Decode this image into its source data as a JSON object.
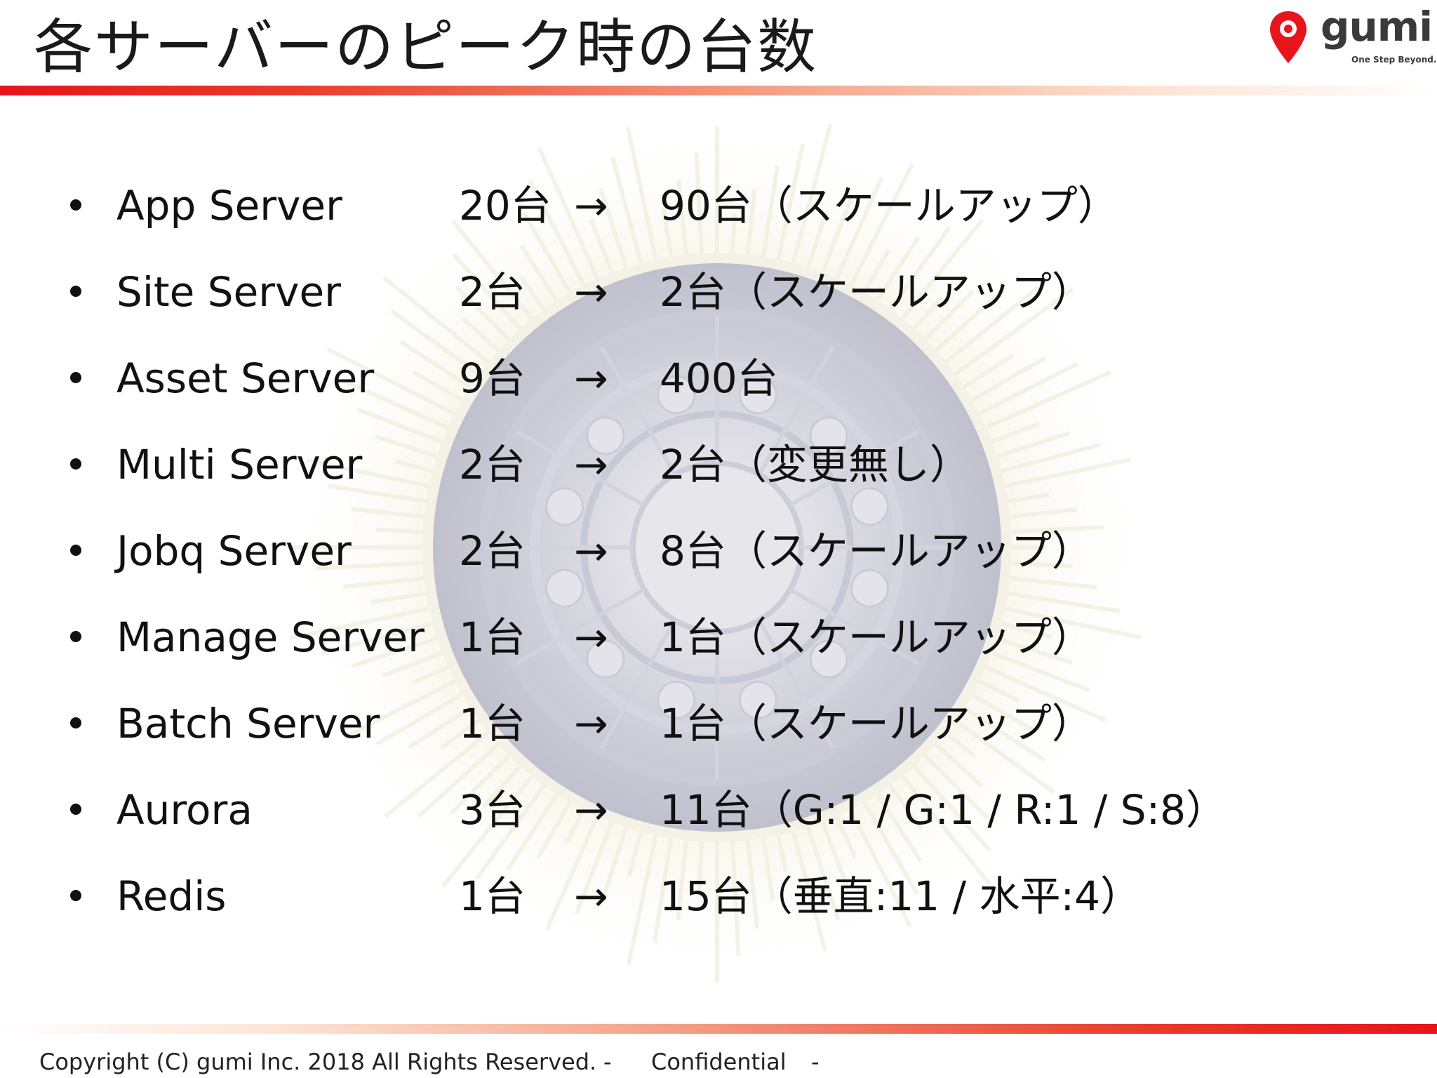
{
  "title": "各サーバーのピーク時の台数",
  "logo": {
    "word": "gumi",
    "tagline": "One Step Beyond.",
    "brand_color": "#e8141c"
  },
  "rows": [
    {
      "name": "App Server",
      "before": "20台",
      "arrow": "→",
      "after": "90台（スケールアップ）"
    },
    {
      "name": "Site Server",
      "before": "2台",
      "arrow": "→",
      "after": "2台（スケールアップ）"
    },
    {
      "name": "Asset Server",
      "before": "9台",
      "arrow": "→",
      "after": "400台"
    },
    {
      "name": "Multi Server",
      "before": "2台",
      "arrow": "→",
      "after": "2台（変更無し）"
    },
    {
      "name": "Jobq Server",
      "before": "2台",
      "arrow": "→",
      "after": "8台（スケールアップ）"
    },
    {
      "name": "Manage Server",
      "before": "1台",
      "arrow": "→",
      "after": "1台（スケールアップ）"
    },
    {
      "name": "Batch Server",
      "before": "1台",
      "arrow": "→",
      "after": "1台（スケールアップ）"
    },
    {
      "name": "Aurora",
      "before": "3台",
      "arrow": "→",
      "after": "11台（G:1 / G:1 / R:1 / S:8）"
    },
    {
      "name": "Redis",
      "before": "1台",
      "arrow": "→",
      "after": "15台（垂直:11 / 水平:4）"
    }
  ],
  "footer": {
    "copyright": "Copyright (C) gumi Inc. 2018 All Rights Reserved.",
    "dash1": "-",
    "confidential": "Confidential",
    "dash2": "-"
  }
}
